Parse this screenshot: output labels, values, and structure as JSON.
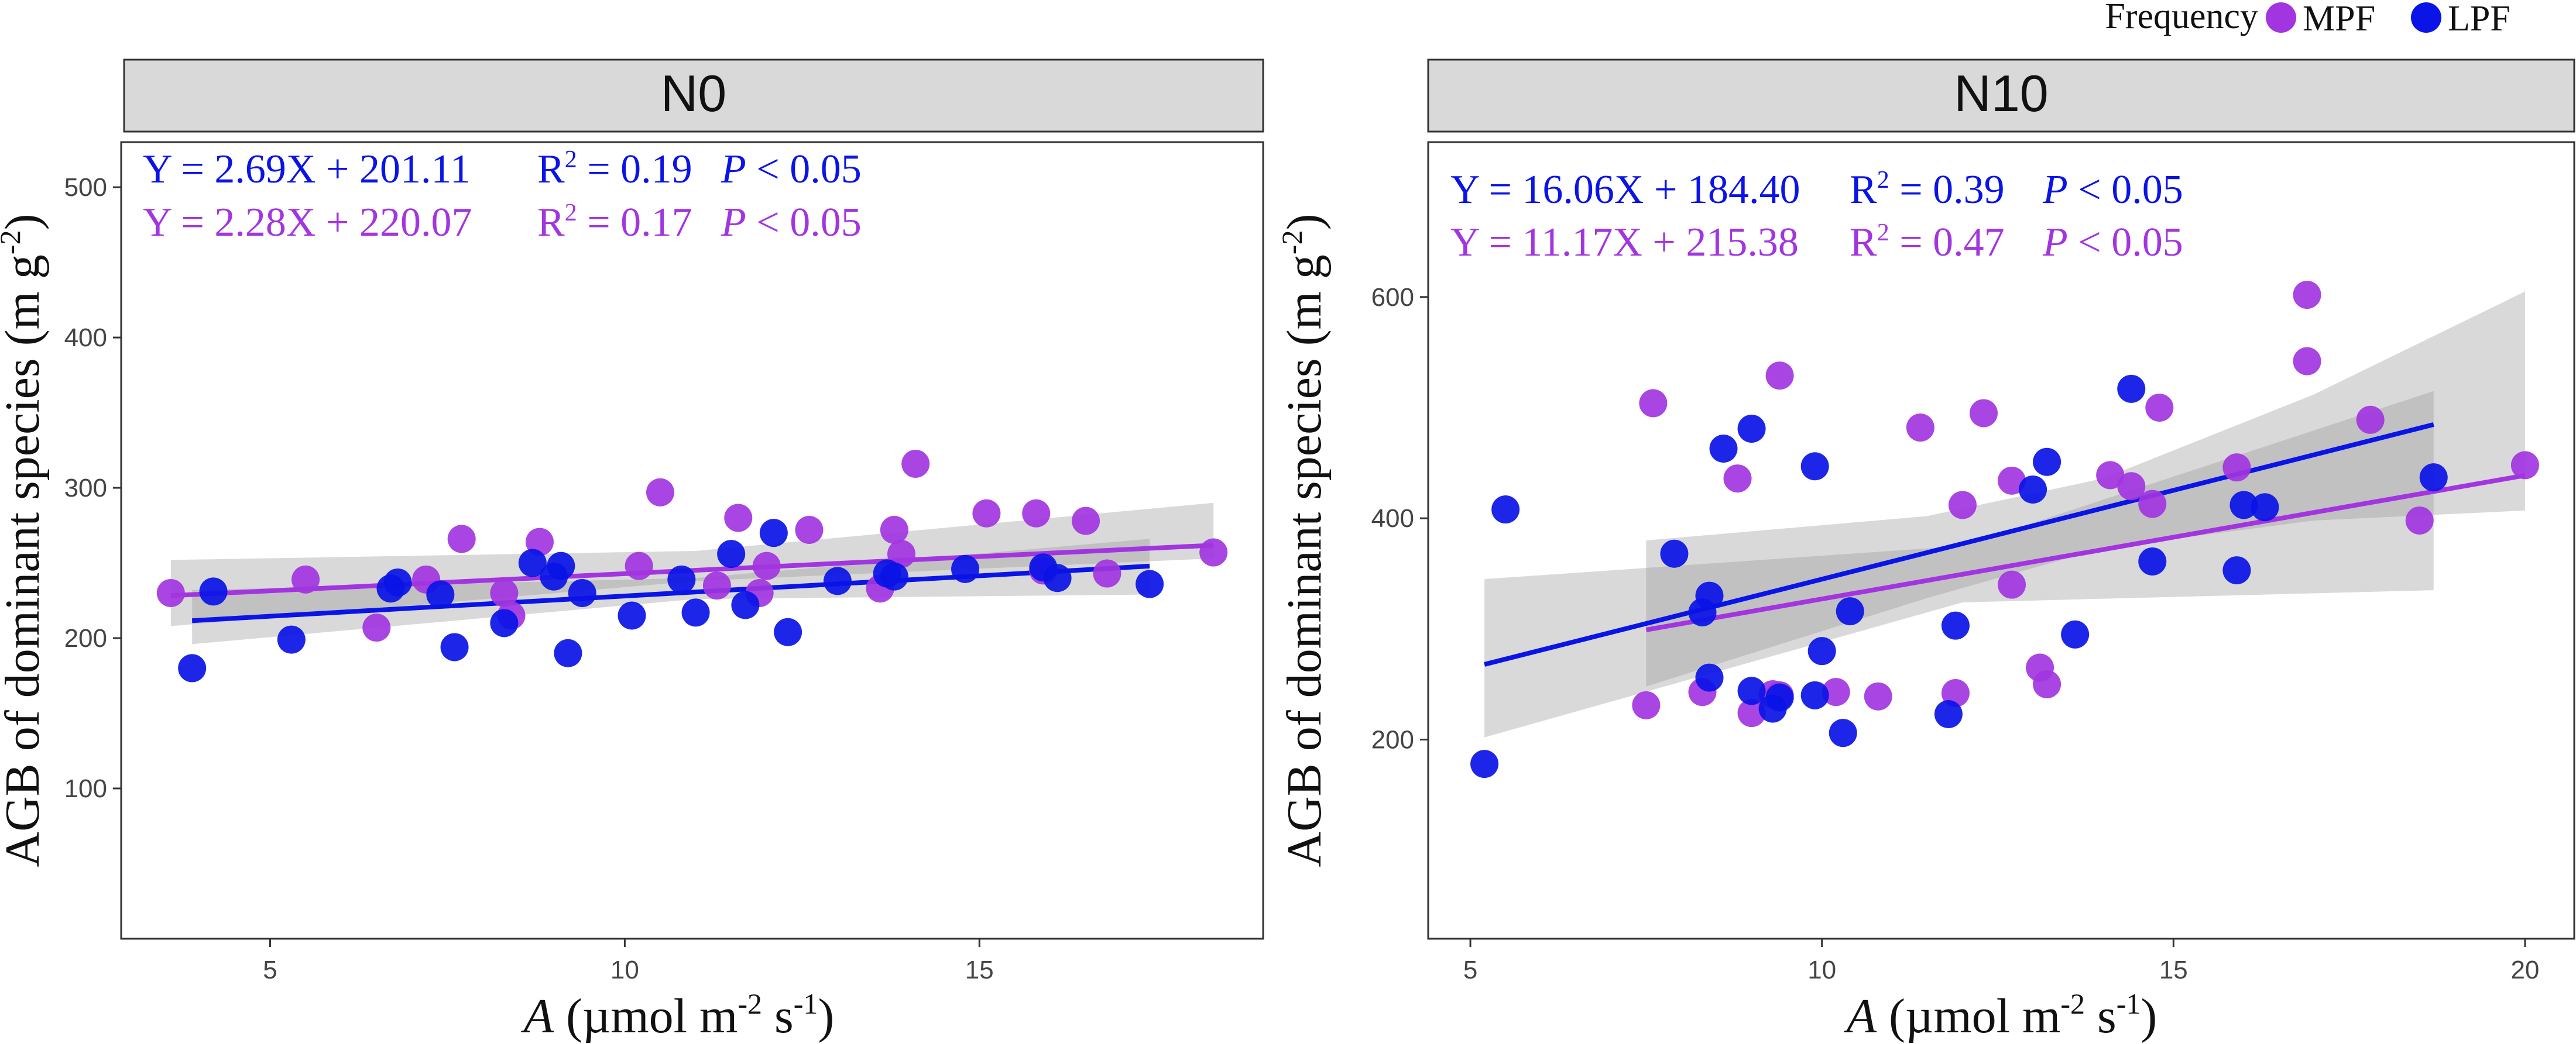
{
  "legend": {
    "title": "Frequency",
    "items": [
      {
        "label": "MPF",
        "color": "#a235e0"
      },
      {
        "label": "LPF",
        "color": "#0a14e6"
      }
    ]
  },
  "chart_data": [
    {
      "type": "scatter",
      "panel": "N0",
      "xlabel_italic": "A",
      "xlabel_rest": " (µmol m",
      "xlabel_sup1": "-2",
      "xlabel_mid": " s",
      "xlabel_sup2": "-1",
      "xlabel_end": ")",
      "ylabel_main": "AGB of  dominant species (m g",
      "ylabel_sup": "-2",
      "ylabel_end": ")",
      "xlim": [
        2.9,
        19.0
      ],
      "ylim": [
        0,
        530
      ],
      "xticks": [
        5,
        10,
        15
      ],
      "yticks": [
        100,
        200,
        300,
        400,
        500
      ],
      "grid": false,
      "equations": [
        {
          "series": "LPF",
          "eq": "Y = 2.69X + 201.11",
          "r2_label": "R",
          "r2_sup": "2",
          "r2_value": " = 0.19",
          "p_italic": "P",
          "p_rest": " < 0.05",
          "color": "#0a14e6"
        },
        {
          "series": "MPF",
          "eq": "Y = 2.28X + 220.07",
          "r2_label": "R",
          "r2_sup": "2",
          "r2_value": " = 0.17",
          "p_italic": "P",
          "p_rest": " < 0.05",
          "color": "#a235e0"
        }
      ],
      "series": [
        {
          "name": "MPF",
          "color": "#a235e0",
          "fit": {
            "slope": 2.28,
            "intercept": 220.07,
            "x_range": [
              3.6,
              18.3
            ]
          },
          "ci": {
            "x": [
              3.6,
              11.0,
              18.3
            ],
            "lower": [
              208,
              238,
              253
            ],
            "upper": [
              252,
              258,
              290
            ]
          },
          "points": [
            [
              3.6,
              230
            ],
            [
              5.5,
              239
            ],
            [
              6.5,
              207
            ],
            [
              7.2,
              239
            ],
            [
              7.7,
              266
            ],
            [
              8.3,
              230
            ],
            [
              8.4,
              215
            ],
            [
              8.8,
              264
            ],
            [
              10.2,
              248
            ],
            [
              10.5,
              297
            ],
            [
              11.3,
              235
            ],
            [
              11.6,
              280
            ],
            [
              11.9,
              230
            ],
            [
              12.0,
              248
            ],
            [
              12.6,
              272
            ],
            [
              13.6,
              233
            ],
            [
              13.8,
              272
            ],
            [
              13.9,
              256
            ],
            [
              14.1,
              316
            ],
            [
              15.1,
              283
            ],
            [
              15.8,
              283
            ],
            [
              15.9,
              245
            ],
            [
              16.5,
              278
            ],
            [
              16.8,
              243
            ],
            [
              18.3,
              257
            ]
          ]
        },
        {
          "name": "LPF",
          "color": "#0a14e6",
          "fit": {
            "slope": 2.69,
            "intercept": 201.11,
            "x_range": [
              3.9,
              17.4
            ]
          },
          "ci": {
            "x": [
              3.9,
              11.0,
              17.4
            ],
            "lower": [
              196,
              226,
              229
            ],
            "upper": [
              232,
              240,
              266
            ]
          },
          "points": [
            [
              3.9,
              180
            ],
            [
              4.2,
              231
            ],
            [
              5.3,
              199
            ],
            [
              6.7,
              233
            ],
            [
              6.8,
              237
            ],
            [
              7.4,
              229
            ],
            [
              7.6,
              194
            ],
            [
              8.3,
              210
            ],
            [
              8.7,
              250
            ],
            [
              9.0,
              241
            ],
            [
              9.1,
              248
            ],
            [
              9.2,
              190
            ],
            [
              9.4,
              230
            ],
            [
              10.1,
              215
            ],
            [
              10.8,
              239
            ],
            [
              11.0,
              217
            ],
            [
              11.5,
              256
            ],
            [
              11.7,
              222
            ],
            [
              12.1,
              270
            ],
            [
              12.3,
              204
            ],
            [
              13.0,
              238
            ],
            [
              13.7,
              243
            ],
            [
              13.8,
              241
            ],
            [
              14.8,
              246
            ],
            [
              15.9,
              247
            ],
            [
              16.1,
              240
            ],
            [
              17.4,
              236
            ]
          ]
        }
      ]
    },
    {
      "type": "scatter",
      "panel": "N10",
      "xlabel_italic": "A",
      "xlabel_rest": " (µmol m",
      "xlabel_sup1": "-2",
      "xlabel_mid": " s",
      "xlabel_sup2": "-1",
      "xlabel_end": ")",
      "ylabel_main": "AGB of  dominant species (m g",
      "ylabel_sup": "-2",
      "ylabel_end": ")",
      "xlim": [
        4.4,
        20.7
      ],
      "ylim": [
        20,
        740
      ],
      "xticks": [
        5,
        10,
        15,
        20
      ],
      "yticks": [
        200,
        400,
        600
      ],
      "grid": false,
      "equations": [
        {
          "series": "LPF",
          "eq": "Y = 16.06X + 184.40",
          "r2_label": "R",
          "r2_sup": "2",
          "r2_value": " = 0.39",
          "p_italic": "P",
          "p_rest": " < 0.05",
          "color": "#0a14e6"
        },
        {
          "series": "MPF",
          "eq": "Y = 11.17X + 215.38",
          "r2_label": "R",
          "r2_sup": "2",
          "r2_value": " = 0.47",
          "p_italic": "P",
          "p_rest": " < 0.05",
          "color": "#a235e0"
        }
      ],
      "series": [
        {
          "name": "MPF",
          "color": "#a235e0",
          "fit": {
            "slope": 11.17,
            "intercept": 215.38,
            "x_range": [
              7.5,
              20.0
            ]
          },
          "ci": {
            "x": [
              7.5,
              11.5,
              14.0,
              17.0,
              20.0
            ],
            "lower": [
              248,
              328,
              373,
              398,
              407
            ],
            "upper": [
              380,
              402,
              436,
              512,
              605
            ]
          },
          "points": [
            [
              7.5,
              231
            ],
            [
              7.6,
              504
            ],
            [
              8.3,
              243
            ],
            [
              8.8,
              436
            ],
            [
              9.0,
              224
            ],
            [
              9.3,
              241
            ],
            [
              9.4,
              529
            ],
            [
              9.4,
              240
            ],
            [
              10.2,
              243
            ],
            [
              10.8,
              239
            ],
            [
              11.4,
              482
            ],
            [
              11.9,
              242
            ],
            [
              12.0,
              412
            ],
            [
              12.3,
              495
            ],
            [
              12.7,
              434
            ],
            [
              12.7,
              340
            ],
            [
              13.2,
              250
            ],
            [
              13.1,
              265
            ],
            [
              14.1,
              439
            ],
            [
              14.4,
              429
            ],
            [
              14.7,
              413
            ],
            [
              14.8,
              500
            ],
            [
              15.9,
              446
            ],
            [
              16.9,
              602
            ],
            [
              16.9,
              542
            ],
            [
              17.8,
              489
            ],
            [
              18.5,
              398
            ],
            [
              20.0,
              448
            ]
          ]
        },
        {
          "name": "LPF",
          "color": "#0a14e6",
          "fit": {
            "slope": 16.06,
            "intercept": 184.4,
            "x_range": [
              5.2,
              18.7
            ]
          },
          "ci": {
            "x": [
              5.2,
              12.0,
              18.7
            ],
            "lower": [
              202,
              324,
              335
            ],
            "upper": [
              345,
              375,
              515
            ]
          },
          "points": [
            [
              5.2,
              178
            ],
            [
              5.5,
              408
            ],
            [
              7.9,
              368
            ],
            [
              8.3,
              315
            ],
            [
              8.4,
              330
            ],
            [
              8.4,
              256
            ],
            [
              8.6,
              463
            ],
            [
              9.0,
              244
            ],
            [
              9.0,
              481
            ],
            [
              9.3,
              228
            ],
            [
              9.4,
              238
            ],
            [
              9.9,
              447
            ],
            [
              9.9,
              240
            ],
            [
              10.0,
              280
            ],
            [
              10.3,
              206
            ],
            [
              10.4,
              316
            ],
            [
              11.8,
              223
            ],
            [
              11.9,
              303
            ],
            [
              13.0,
              426
            ],
            [
              13.2,
              451
            ],
            [
              13.6,
              295
            ],
            [
              14.4,
              517
            ],
            [
              14.7,
              361
            ],
            [
              15.9,
              353
            ],
            [
              16.0,
              412
            ],
            [
              16.3,
              410
            ],
            [
              18.7,
              437
            ]
          ]
        }
      ]
    }
  ]
}
